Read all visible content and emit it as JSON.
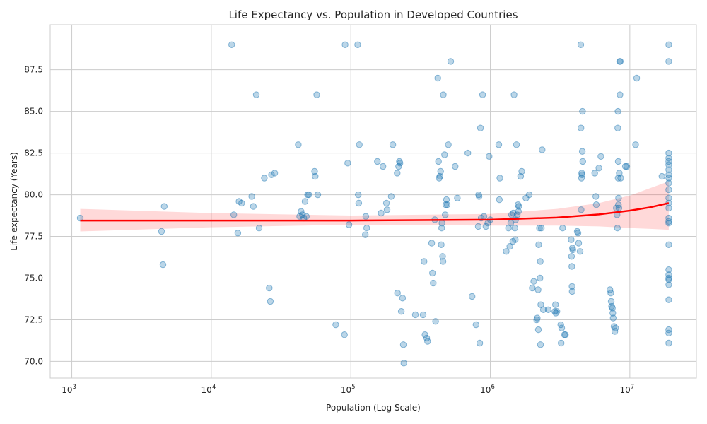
{
  "chart_data": {
    "type": "scatter",
    "title": "Life Expectancy vs. Population in Developed Countries",
    "xlabel": "Population (Log Scale)",
    "ylabel": "Life expectancy (Years)",
    "x_scale": "log",
    "xlim": [
      700,
      30000000
    ],
    "ylim": [
      69,
      90.2
    ],
    "x_ticks": [
      {
        "value": 1000,
        "base": "10",
        "exp": "3"
      },
      {
        "value": 10000,
        "base": "10",
        "exp": "4"
      },
      {
        "value": 100000,
        "base": "10",
        "exp": "5"
      },
      {
        "value": 1000000,
        "base": "10",
        "exp": "6"
      },
      {
        "value": 10000000,
        "base": "10",
        "exp": "7"
      }
    ],
    "y_ticks": [
      {
        "value": 70,
        "label": "70.0"
      },
      {
        "value": 72.5,
        "label": "72.5"
      },
      {
        "value": 75,
        "label": "75.0"
      },
      {
        "value": 77.5,
        "label": "77.5"
      },
      {
        "value": 80,
        "label": "80.0"
      },
      {
        "value": 82.5,
        "label": "82.5"
      },
      {
        "value": 85,
        "label": "85.0"
      },
      {
        "value": 87.5,
        "label": "87.5"
      }
    ],
    "grid": true,
    "points_color": "#1f77b4",
    "trend_color": "#ff0000",
    "points": [
      [
        1150,
        78.6
      ],
      [
        4400,
        77.8
      ],
      [
        4500,
        75.8
      ],
      [
        4600,
        79.3
      ],
      [
        14000,
        89.0
      ],
      [
        14500,
        78.8
      ],
      [
        15500,
        77.7
      ],
      [
        15800,
        79.6
      ],
      [
        16500,
        79.5
      ],
      [
        19500,
        79.9
      ],
      [
        20000,
        79.3
      ],
      [
        21000,
        86.0
      ],
      [
        22000,
        78.0
      ],
      [
        24000,
        81.0
      ],
      [
        26000,
        74.4
      ],
      [
        26500,
        73.6
      ],
      [
        27000,
        81.2
      ],
      [
        28500,
        81.3
      ],
      [
        42000,
        83.0
      ],
      [
        43000,
        78.7
      ],
      [
        44000,
        79.0
      ],
      [
        45000,
        78.8
      ],
      [
        46000,
        78.6
      ],
      [
        47000,
        79.6
      ],
      [
        48000,
        78.7
      ],
      [
        49000,
        80.0
      ],
      [
        50000,
        80.0
      ],
      [
        55000,
        81.4
      ],
      [
        55500,
        81.1
      ],
      [
        57000,
        86.0
      ],
      [
        58000,
        80.0
      ],
      [
        78000,
        72.2
      ],
      [
        90000,
        71.6
      ],
      [
        91000,
        89.0
      ],
      [
        95000,
        81.9
      ],
      [
        97000,
        78.2
      ],
      [
        112000,
        89.0
      ],
      [
        113000,
        80.0
      ],
      [
        114000,
        79.5
      ],
      [
        115000,
        83.0
      ],
      [
        127000,
        77.6
      ],
      [
        128000,
        78.7
      ],
      [
        130000,
        78.0
      ],
      [
        155000,
        82.0
      ],
      [
        165000,
        78.9
      ],
      [
        170000,
        81.7
      ],
      [
        180000,
        79.5
      ],
      [
        182000,
        79.1
      ],
      [
        195000,
        79.9
      ],
      [
        200000,
        83.0
      ],
      [
        215000,
        81.3
      ],
      [
        216000,
        74.1
      ],
      [
        220000,
        81.7
      ],
      [
        223000,
        82.0
      ],
      [
        225000,
        81.9
      ],
      [
        230000,
        73.0
      ],
      [
        235000,
        73.8
      ],
      [
        238000,
        71.0
      ],
      [
        240000,
        69.9
      ],
      [
        290000,
        72.8
      ],
      [
        330000,
        72.8
      ],
      [
        335000,
        76.0
      ],
      [
        340000,
        71.6
      ],
      [
        350000,
        71.4
      ],
      [
        355000,
        71.2
      ],
      [
        380000,
        77.1
      ],
      [
        385000,
        75.3
      ],
      [
        390000,
        74.7
      ],
      [
        400000,
        78.5
      ],
      [
        405000,
        72.4
      ],
      [
        420000,
        87.0
      ],
      [
        425000,
        82.0
      ],
      [
        430000,
        81.0
      ],
      [
        435000,
        81.1
      ],
      [
        440000,
        81.4
      ],
      [
        445000,
        77.0
      ],
      [
        448000,
        78.0
      ],
      [
        450000,
        78.3
      ],
      [
        455000,
        76.3
      ],
      [
        458000,
        76.0
      ],
      [
        460000,
        86.0
      ],
      [
        470000,
        82.4
      ],
      [
        475000,
        78.8
      ],
      [
        480000,
        79.4
      ],
      [
        485000,
        79.7
      ],
      [
        490000,
        79.4
      ],
      [
        500000,
        83.0
      ],
      [
        520000,
        88.0
      ],
      [
        560000,
        81.7
      ],
      [
        580000,
        79.8
      ],
      [
        690000,
        82.5
      ],
      [
        740000,
        73.9
      ],
      [
        790000,
        72.2
      ],
      [
        820000,
        78.1
      ],
      [
        825000,
        80.0
      ],
      [
        830000,
        79.9
      ],
      [
        840000,
        71.1
      ],
      [
        850000,
        84.0
      ],
      [
        860000,
        78.6
      ],
      [
        880000,
        86.0
      ],
      [
        900000,
        78.7
      ],
      [
        930000,
        78.1
      ],
      [
        960000,
        78.3
      ],
      [
        980000,
        82.3
      ],
      [
        1000000,
        78.5
      ],
      [
        1150000,
        83.0
      ],
      [
        1160000,
        79.7
      ],
      [
        1170000,
        81.0
      ],
      [
        1300000,
        76.6
      ],
      [
        1350000,
        78.0
      ],
      [
        1380000,
        76.9
      ],
      [
        1400000,
        78.3
      ],
      [
        1420000,
        78.8
      ],
      [
        1450000,
        77.2
      ],
      [
        1460000,
        78.9
      ],
      [
        1480000,
        86.0
      ],
      [
        1500000,
        78.0
      ],
      [
        1510000,
        77.3
      ],
      [
        1520000,
        78.5
      ],
      [
        1540000,
        83.0
      ],
      [
        1560000,
        78.8
      ],
      [
        1580000,
        79.4
      ],
      [
        1590000,
        79.0
      ],
      [
        1600000,
        79.3
      ],
      [
        1650000,
        81.1
      ],
      [
        1680000,
        81.4
      ],
      [
        1800000,
        79.8
      ],
      [
        1900000,
        80.0
      ],
      [
        2000000,
        74.4
      ],
      [
        2050000,
        74.8
      ],
      [
        2150000,
        72.5
      ],
      [
        2170000,
        72.6
      ],
      [
        2200000,
        74.3
      ],
      [
        2210000,
        71.9
      ],
      [
        2220000,
        77.0
      ],
      [
        2250000,
        78.0
      ],
      [
        2270000,
        75.0
      ],
      [
        2280000,
        76.0
      ],
      [
        2290000,
        71.0
      ],
      [
        2300000,
        73.4
      ],
      [
        2320000,
        78.0
      ],
      [
        2350000,
        82.7
      ],
      [
        2400000,
        73.1
      ],
      [
        2600000,
        73.1
      ],
      [
        2900000,
        73.0
      ],
      [
        2930000,
        73.4
      ],
      [
        2950000,
        72.9
      ],
      [
        3000000,
        73.0
      ],
      [
        3200000,
        72.2
      ],
      [
        3220000,
        71.1
      ],
      [
        3250000,
        72.0
      ],
      [
        3300000,
        78.0
      ],
      [
        3400000,
        71.6
      ],
      [
        3450000,
        71.6
      ],
      [
        3800000,
        77.3
      ],
      [
        3820000,
        76.3
      ],
      [
        3840000,
        75.7
      ],
      [
        3850000,
        74.5
      ],
      [
        3860000,
        74.2
      ],
      [
        3880000,
        76.8
      ],
      [
        3900000,
        76.7
      ],
      [
        4200000,
        77.8
      ],
      [
        4250000,
        77.7
      ],
      [
        4300000,
        77.1
      ],
      [
        4400000,
        76.6
      ],
      [
        4450000,
        89.0
      ],
      [
        4460000,
        84.0
      ],
      [
        4480000,
        79.1
      ],
      [
        4500000,
        81.0
      ],
      [
        4520000,
        81.3
      ],
      [
        4540000,
        81.2
      ],
      [
        4560000,
        82.6
      ],
      [
        4580000,
        85.0
      ],
      [
        4600000,
        82.0
      ],
      [
        5600000,
        81.3
      ],
      [
        5700000,
        79.9
      ],
      [
        5750000,
        79.4
      ],
      [
        6000000,
        81.6
      ],
      [
        6200000,
        82.3
      ],
      [
        7200000,
        74.3
      ],
      [
        7300000,
        74.1
      ],
      [
        7350000,
        73.6
      ],
      [
        7400000,
        73.3
      ],
      [
        7500000,
        73.2
      ],
      [
        7550000,
        72.9
      ],
      [
        7600000,
        72.6
      ],
      [
        7700000,
        72.1
      ],
      [
        7800000,
        71.8
      ],
      [
        7900000,
        72.0
      ],
      [
        8000000,
        79.2
      ],
      [
        8100000,
        78.8
      ],
      [
        8150000,
        78.0
      ],
      [
        8200000,
        84.0
      ],
      [
        8220000,
        85.0
      ],
      [
        8240000,
        81.0
      ],
      [
        8260000,
        82.0
      ],
      [
        8280000,
        79.4
      ],
      [
        8300000,
        79.8
      ],
      [
        8350000,
        79.2
      ],
      [
        8400000,
        81.3
      ],
      [
        8450000,
        88.0
      ],
      [
        8500000,
        86.0
      ],
      [
        8550000,
        88.0
      ],
      [
        8600000,
        81.0
      ],
      [
        9300000,
        81.7
      ],
      [
        9500000,
        81.7
      ],
      [
        11000000,
        83.0
      ],
      [
        11200000,
        87.0
      ],
      [
        17000000,
        81.1
      ],
      [
        19000000,
        89.0
      ],
      [
        19000000,
        88.0
      ],
      [
        19000000,
        82.5
      ],
      [
        19000000,
        82.2
      ],
      [
        19000000,
        82.0
      ],
      [
        19000000,
        81.8
      ],
      [
        19000000,
        81.5
      ],
      [
        19000000,
        81.2
      ],
      [
        19000000,
        81.0
      ],
      [
        19000000,
        80.7
      ],
      [
        19000000,
        80.3
      ],
      [
        19000000,
        79.8
      ],
      [
        19000000,
        79.5
      ],
      [
        19000000,
        79.2
      ],
      [
        19000000,
        78.6
      ],
      [
        19000000,
        78.4
      ],
      [
        19000000,
        78.3
      ],
      [
        19000000,
        77.0
      ],
      [
        19000000,
        75.5
      ],
      [
        19000000,
        75.2
      ],
      [
        19000000,
        75.0
      ],
      [
        19000000,
        74.9
      ],
      [
        19000000,
        74.6
      ],
      [
        19000000,
        73.7
      ],
      [
        19000000,
        71.9
      ],
      [
        19000000,
        71.7
      ],
      [
        19000000,
        71.1
      ]
    ],
    "trend_line": {
      "x": [
        1150,
        10000,
        100000,
        1000000,
        3000000,
        6000000,
        10000000,
        14000000,
        19000000
      ],
      "y": [
        78.45,
        78.45,
        78.45,
        78.5,
        78.63,
        78.82,
        79.05,
        79.25,
        79.5
      ],
      "ci_lower": [
        77.8,
        78.05,
        78.2,
        78.15,
        78.15,
        78.1,
        78.0,
        77.95,
        77.9
      ],
      "ci_upper": [
        79.15,
        78.9,
        78.75,
        78.85,
        79.15,
        79.5,
        79.95,
        80.4,
        80.8
      ]
    }
  }
}
